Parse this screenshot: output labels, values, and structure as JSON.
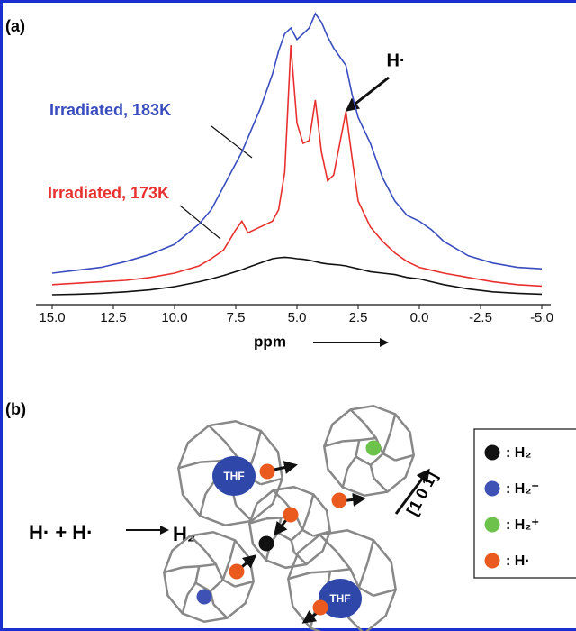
{
  "chart_data": {
    "type": "line",
    "panel_label": "(a)",
    "xlabel": "ppm",
    "x": [
      15,
      14,
      13,
      12,
      11,
      10,
      9,
      8.5,
      8,
      7.5,
      7.25,
      7,
      6.5,
      6,
      5.75,
      5.5,
      5.25,
      5,
      4.75,
      4.5,
      4.25,
      4,
      3.75,
      3.5,
      3.25,
      3,
      2.75,
      2.5,
      2,
      1.5,
      1,
      0.5,
      0,
      -0.5,
      -1,
      -2,
      -3,
      -4,
      -5
    ],
    "series": [
      {
        "name": "Irradiated, 183K",
        "color": "#3a4dbf",
        "values": [
          10,
          11,
          12,
          14,
          16.5,
          20,
          27,
          32,
          40,
          48,
          52,
          57,
          67,
          79,
          87,
          93,
          95,
          91,
          93,
          95,
          100,
          97,
          92,
          88,
          85,
          82,
          72,
          64,
          55,
          43,
          35,
          30,
          28,
          25,
          21,
          16,
          13.5,
          12,
          11.5
        ]
      },
      {
        "name": "Irradiated, 173K",
        "color": "#e8312f",
        "values": [
          6,
          6.5,
          7,
          7.5,
          8.5,
          10,
          12.5,
          15,
          18,
          25,
          28,
          24,
          26,
          28,
          32,
          45,
          89,
          62,
          55,
          56,
          70,
          52,
          42,
          44,
          55,
          66,
          50,
          35,
          26,
          21,
          17,
          14,
          12,
          11,
          10,
          8.5,
          7,
          6,
          5.5
        ]
      },
      {
        "color": "#111111",
        "values": [
          2.5,
          2.7,
          3,
          3.5,
          4.2,
          5.3,
          7,
          8,
          9.2,
          10.5,
          11.2,
          12,
          13.5,
          15,
          15.3,
          15.5,
          15.3,
          15,
          14.8,
          14.5,
          14,
          13.5,
          13.2,
          13,
          12.8,
          12.5,
          12,
          11.5,
          10.5,
          10,
          9.5,
          8.5,
          8,
          7,
          6,
          4.5,
          3.5,
          3,
          2.7
        ]
      }
    ],
    "xlim": [
      15,
      -5
    ],
    "ylim": [
      0,
      100
    ],
    "xticks": [
      {
        "value": 15,
        "label": "15.0"
      },
      12.5,
      {
        "value": 10,
        "label": "10.0"
      },
      7.5,
      {
        "value": 5,
        "label": "5.0"
      },
      2.5,
      {
        "value": 0,
        "label": "0.0"
      },
      -2.5,
      {
        "value": -5,
        "label": "-5.0"
      }
    ],
    "annotations": [
      {
        "text": "H·"
      }
    ]
  },
  "diagram": {
    "panel_label": "(b)",
    "reaction_left": "H· + H·",
    "reaction_right": "H₂",
    "direction": "[1 0 1]",
    "molecule_labels": [
      "THF",
      "THF"
    ],
    "legend": [
      {
        "label": ": H₂",
        "color": "#111111"
      },
      {
        "label": ": H₂⁻",
        "color": "#3f51b5"
      },
      {
        "label": ": H₂⁺",
        "color": "#6cc24a"
      },
      {
        "label": ": H·",
        "color": "#ea5a1e"
      }
    ]
  }
}
